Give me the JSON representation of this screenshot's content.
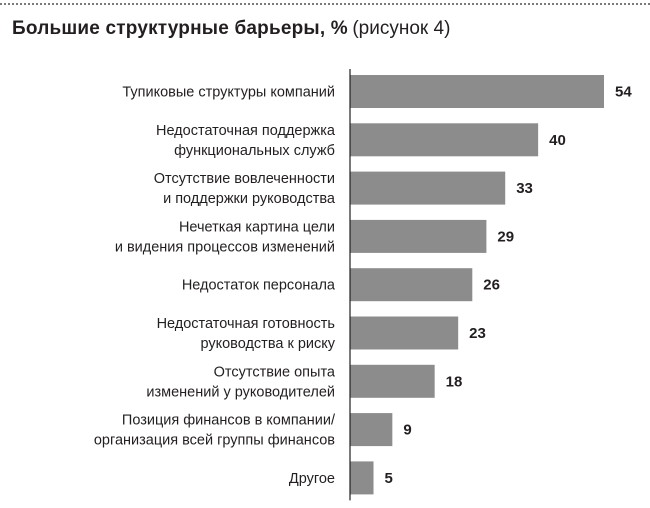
{
  "chart_data": {
    "type": "bar",
    "orientation": "horizontal",
    "title": "Большие структурные барьеры, %",
    "subtitle": "(рисунок 4)",
    "categories": [
      [
        "Тупиковые структуры компаний"
      ],
      [
        "Недостаточная поддержка",
        "функциональных служб"
      ],
      [
        "Отсутствие вовлеченности",
        "и поддержки руководства"
      ],
      [
        "Нечеткая картина цели",
        "и видения процессов изменений"
      ],
      [
        "Недостаток персонала"
      ],
      [
        "Недостаточная готовность",
        "руководства к риску"
      ],
      [
        "Отсутствие опыта",
        "изменений у руководителей"
      ],
      [
        "Позиция финансов в компании/",
        "организация всей группы финансов"
      ],
      [
        "Другое"
      ]
    ],
    "values": [
      54,
      40,
      33,
      29,
      26,
      23,
      18,
      9,
      5
    ],
    "xlim": [
      0,
      54
    ],
    "bar_color": "#8c8c8c",
    "grid": false,
    "legend": "none"
  }
}
